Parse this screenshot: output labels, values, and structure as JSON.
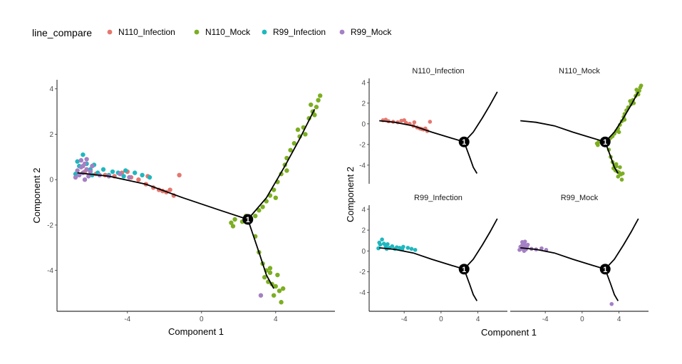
{
  "legend": {
    "title": "line_compare",
    "items": [
      {
        "label": "N110_Infection",
        "color": "#E5776E"
      },
      {
        "label": "N110_Mock",
        "color": "#7CAE22"
      },
      {
        "label": "R99_Infection",
        "color": "#1FB7BF"
      },
      {
        "label": "R99_Mock",
        "color": "#A480C4"
      }
    ]
  },
  "branch_point_label": "1",
  "chart_data": [
    {
      "type": "scatter",
      "title": "",
      "xlabel": "Component 1",
      "ylabel": "Component 2",
      "xlim": [
        -7.8,
        7.2
      ],
      "ylim": [
        -5.8,
        4.4
      ],
      "xticks": [
        -4,
        0,
        4
      ],
      "yticks": [
        -4,
        -2,
        0,
        2,
        4
      ],
      "grid": false,
      "trajectory": [
        [
          [
            -6.7,
            0.3
          ],
          [
            -5,
            0.15
          ],
          [
            -3,
            -0.2
          ],
          [
            -1,
            -0.8
          ],
          [
            1,
            -1.35
          ],
          [
            2.5,
            -1.75
          ]
        ],
        [
          [
            2.5,
            -1.75
          ],
          [
            3.5,
            -0.8
          ],
          [
            4.5,
            0.6
          ],
          [
            5.3,
            1.8
          ],
          [
            6.1,
            3.1
          ]
        ],
        [
          [
            2.5,
            -1.75
          ],
          [
            3.1,
            -3.2
          ],
          [
            3.5,
            -4.2
          ],
          [
            3.9,
            -4.8
          ]
        ]
      ],
      "branch_point": [
        2.5,
        -1.75
      ],
      "series": [
        {
          "name": "N110_Infection",
          "points": [
            [
              -6.3,
              0.35
            ],
            [
              -5.7,
              0.25
            ],
            [
              -5.2,
              0.2
            ],
            [
              -4.7,
              0.15
            ],
            [
              -4.3,
              0.3
            ],
            [
              -3.8,
              0.1
            ],
            [
              -3.4,
              0.0
            ],
            [
              -3.0,
              -0.2
            ],
            [
              -2.6,
              -0.35
            ],
            [
              -2.3,
              -0.45
            ],
            [
              -1.9,
              -0.55
            ],
            [
              -1.5,
              -0.7
            ],
            [
              -1.2,
              0.2
            ],
            [
              -6.0,
              0.4
            ],
            [
              -4.0,
              0.35
            ],
            [
              -2.9,
              0.15
            ],
            [
              -1.7,
              -0.45
            ],
            [
              -2.1,
              -0.5
            ]
          ]
        },
        {
          "name": "N110_Mock",
          "points": [
            [
              1.6,
              -1.9
            ],
            [
              1.8,
              -1.75
            ],
            [
              2.2,
              -1.85
            ],
            [
              2.4,
              -1.6
            ],
            [
              2.9,
              -1.6
            ],
            [
              3.1,
              -1.35
            ],
            [
              3.3,
              -1.2
            ],
            [
              3.5,
              -0.95
            ],
            [
              3.7,
              -0.7
            ],
            [
              3.9,
              -0.45
            ],
            [
              4.1,
              -0.1
            ],
            [
              4.3,
              0.25
            ],
            [
              4.5,
              0.65
            ],
            [
              4.6,
              0.95
            ],
            [
              4.8,
              1.3
            ],
            [
              5.0,
              1.6
            ],
            [
              5.3,
              1.9
            ],
            [
              5.5,
              2.3
            ],
            [
              5.8,
              2.7
            ],
            [
              6.0,
              3.0
            ],
            [
              6.2,
              3.2
            ],
            [
              6.3,
              3.5
            ],
            [
              6.1,
              2.85
            ],
            [
              5.9,
              3.3
            ],
            [
              6.4,
              3.7
            ],
            [
              5.6,
              2.0
            ],
            [
              2.9,
              -2.5
            ],
            [
              3.1,
              -3.2
            ],
            [
              3.3,
              -3.7
            ],
            [
              3.5,
              -4.0
            ],
            [
              3.7,
              -4.1
            ],
            [
              3.6,
              -4.5
            ],
            [
              3.8,
              -4.6
            ],
            [
              4.0,
              -4.7
            ],
            [
              4.2,
              -4.9
            ],
            [
              3.9,
              -5.1
            ],
            [
              4.3,
              -5.4
            ],
            [
              4.4,
              -4.8
            ],
            [
              3.4,
              -4.3
            ],
            [
              3.7,
              -3.9
            ],
            [
              4.1,
              -4.2
            ],
            [
              1.7,
              -2.05
            ],
            [
              4.0,
              -0.8
            ],
            [
              4.6,
              0.4
            ],
            [
              5.2,
              2.2
            ]
          ]
        },
        {
          "name": "R99_Infection",
          "points": [
            [
              -6.8,
              0.25
            ],
            [
              -6.6,
              0.6
            ],
            [
              -6.4,
              1.1
            ],
            [
              -6.2,
              0.7
            ],
            [
              -6.0,
              0.45
            ],
            [
              -5.8,
              0.65
            ],
            [
              -5.6,
              0.3
            ],
            [
              -5.3,
              0.45
            ],
            [
              -5.0,
              0.2
            ],
            [
              -4.8,
              0.35
            ],
            [
              -4.5,
              0.3
            ],
            [
              -4.1,
              0.4
            ],
            [
              -3.6,
              0.3
            ],
            [
              -3.2,
              0.2
            ],
            [
              -2.8,
              0.1
            ],
            [
              -6.7,
              0.8
            ],
            [
              -5.9,
              0.2
            ],
            [
              -4.2,
              0.15
            ]
          ]
        },
        {
          "name": "R99_Mock",
          "points": [
            [
              -6.8,
              0.1
            ],
            [
              -6.7,
              0.4
            ],
            [
              -6.6,
              0.2
            ],
            [
              -6.5,
              0.55
            ],
            [
              -6.4,
              0.3
            ],
            [
              -6.3,
              0.7
            ],
            [
              -6.2,
              0.45
            ],
            [
              -6.1,
              0.15
            ],
            [
              -6.0,
              0.35
            ],
            [
              -6.5,
              0.85
            ],
            [
              -6.3,
              0.0
            ],
            [
              -5.9,
              0.6
            ],
            [
              -5.5,
              0.2
            ],
            [
              -5.0,
              0.15
            ],
            [
              -4.4,
              0.25
            ],
            [
              -3.9,
              0.1
            ],
            [
              -6.4,
              0.6
            ],
            [
              -6.2,
              0.9
            ],
            [
              3.2,
              -5.1
            ]
          ]
        }
      ]
    },
    {
      "type": "scatter",
      "facet_layout": "2x2",
      "xlabel": "Component 1",
      "ylabel": "Component 2",
      "xlim": [
        -7.8,
        7.2
      ],
      "ylim": [
        -5.8,
        4.4
      ],
      "xticks": [
        -4,
        0,
        4
      ],
      "yticks": [
        -4,
        -2,
        0,
        2,
        4
      ],
      "grid": false,
      "trajectory": [
        [
          [
            -6.7,
            0.3
          ],
          [
            -5,
            0.15
          ],
          [
            -3,
            -0.2
          ],
          [
            -1,
            -0.8
          ],
          [
            1,
            -1.35
          ],
          [
            2.5,
            -1.75
          ]
        ],
        [
          [
            2.5,
            -1.75
          ],
          [
            3.5,
            -0.8
          ],
          [
            4.5,
            0.6
          ],
          [
            5.3,
            1.8
          ],
          [
            6.1,
            3.1
          ]
        ],
        [
          [
            2.5,
            -1.75
          ],
          [
            3.1,
            -3.2
          ],
          [
            3.5,
            -4.2
          ],
          [
            3.9,
            -4.8
          ]
        ]
      ],
      "facets": [
        {
          "label": "N110_Infection",
          "series": "N110_Infection"
        },
        {
          "label": "N110_Mock",
          "series": "N110_Mock"
        },
        {
          "label": "R99_Infection",
          "series": "R99_Infection"
        },
        {
          "label": "R99_Mock",
          "series": "R99_Mock"
        }
      ]
    }
  ]
}
